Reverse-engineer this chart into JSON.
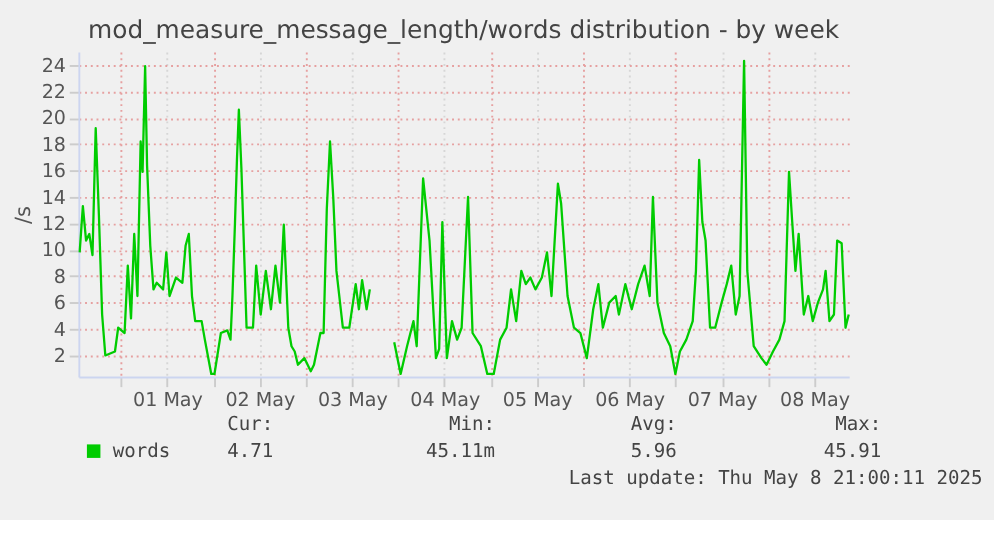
{
  "chart_data": {
    "type": "line",
    "title": "mod_measure_message_length/words distribution - by week",
    "ylabel": "/s",
    "x": [
      "2025-04-30T13:20",
      "2025-04-30T14:10",
      "2025-04-30T15:00",
      "2025-04-30T15:50",
      "2025-04-30T16:40",
      "2025-04-30T17:30",
      "2025-04-30T18:20",
      "2025-04-30T19:10",
      "2025-04-30T20:00",
      "2025-04-30T22:30",
      "2025-04-30T23:20",
      "2025-05-01T01:00",
      "2025-05-01T01:50",
      "2025-05-01T02:40",
      "2025-05-01T03:30",
      "2025-05-01T04:20",
      "2025-05-01T05:10",
      "2025-05-01T05:40",
      "2025-05-01T06:20",
      "2025-05-01T06:50",
      "2025-05-01T07:40",
      "2025-05-01T08:30",
      "2025-05-01T09:20",
      "2025-05-01T11:00",
      "2025-05-01T11:50",
      "2025-05-01T12:40",
      "2025-05-01T14:20",
      "2025-05-01T16:00",
      "2025-05-01T16:50",
      "2025-05-01T17:40",
      "2025-05-01T18:30",
      "2025-05-01T19:20",
      "2025-05-01T21:00",
      "2025-05-01T21:50",
      "2025-05-01T23:30",
      "2025-05-02T00:20",
      "2025-05-02T02:00",
      "2025-05-02T03:40",
      "2025-05-02T04:30",
      "2025-05-02T05:00",
      "2025-05-02T05:40",
      "2025-05-02T06:10",
      "2025-05-02T06:40",
      "2025-05-02T07:20",
      "2025-05-02T08:40",
      "2025-05-02T10:20",
      "2025-05-02T11:10",
      "2025-05-02T12:20",
      "2025-05-02T13:40",
      "2025-05-02T15:00",
      "2025-05-02T16:10",
      "2025-05-02T17:20",
      "2025-05-02T18:20",
      "2025-05-02T19:30",
      "2025-05-02T20:20",
      "2025-05-02T21:10",
      "2025-05-02T22:00",
      "2025-05-02T23:40",
      "2025-05-03T01:20",
      "2025-05-03T02:10",
      "2025-05-03T03:50",
      "2025-05-03T04:40",
      "2025-05-03T05:30",
      "2025-05-03T06:20",
      "2025-05-03T07:10",
      "2025-05-03T08:00",
      "2025-05-03T09:40",
      "2025-05-03T11:20",
      "2025-05-03T13:00",
      "2025-05-03T13:50",
      "2025-05-03T14:40",
      "2025-05-03T15:50",
      "2025-05-03T16:40",
      "2025-05-03T20:00",
      "2025-05-03T23:00",
      "2025-05-04T00:40",
      "2025-05-04T02:20",
      "2025-05-04T04:00",
      "2025-05-04T04:50",
      "2025-05-04T06:30",
      "2025-05-04T08:10",
      "2025-05-04T09:50",
      "2025-05-04T10:40",
      "2025-05-04T11:30",
      "2025-05-04T12:40",
      "2025-05-04T14:00",
      "2025-05-04T15:20",
      "2025-05-04T16:30",
      "2025-05-04T18:10",
      "2025-05-04T19:20",
      "2025-05-04T21:30",
      "2025-05-04T23:10",
      "2025-05-05T00:50",
      "2025-05-05T02:30",
      "2025-05-05T04:10",
      "2025-05-05T05:20",
      "2025-05-05T06:40",
      "2025-05-05T08:00",
      "2025-05-05T09:10",
      "2025-05-05T10:20",
      "2025-05-05T11:40",
      "2025-05-05T13:20",
      "2025-05-05T14:40",
      "2025-05-05T15:50",
      "2025-05-05T17:30",
      "2025-05-05T18:20",
      "2025-05-05T20:00",
      "2025-05-05T21:40",
      "2025-05-05T23:20",
      "2025-05-06T01:00",
      "2025-05-06T02:40",
      "2025-05-06T04:00",
      "2025-05-06T05:10",
      "2025-05-06T06:50",
      "2025-05-06T08:30",
      "2025-05-06T09:20",
      "2025-05-06T11:00",
      "2025-05-06T12:40",
      "2025-05-06T14:20",
      "2025-05-06T16:00",
      "2025-05-06T17:20",
      "2025-05-06T18:10",
      "2025-05-06T19:20",
      "2025-05-06T21:00",
      "2025-05-06T22:40",
      "2025-05-07T00:00",
      "2025-05-07T01:10",
      "2025-05-07T02:50",
      "2025-05-07T04:30",
      "2025-05-07T05:20",
      "2025-05-07T06:10",
      "2025-05-07T07:00",
      "2025-05-07T07:50",
      "2025-05-07T09:00",
      "2025-05-07T10:20",
      "2025-05-07T12:00",
      "2025-05-07T13:20",
      "2025-05-07T14:30",
      "2025-05-07T15:40",
      "2025-05-07T16:40",
      "2025-05-07T17:50",
      "2025-05-07T18:40",
      "2025-05-07T20:20",
      "2025-05-07T22:20",
      "2025-05-07T23:40",
      "2025-05-08T01:20",
      "2025-05-08T03:00",
      "2025-05-08T04:20",
      "2025-05-08T05:30",
      "2025-05-08T06:20",
      "2025-05-08T07:10",
      "2025-05-08T08:00",
      "2025-05-08T09:20",
      "2025-05-08T10:30",
      "2025-05-08T11:40",
      "2025-05-08T13:00",
      "2025-05-08T14:20",
      "2025-05-08T15:00",
      "2025-05-08T16:00",
      "2025-05-08T17:10",
      "2025-05-08T18:00",
      "2025-05-08T19:10",
      "2025-05-08T20:10",
      "2025-05-08T21:00"
    ],
    "series": [
      {
        "name": "words",
        "color": "#00cc00",
        "values": [
          9.8,
          13.3,
          10.7,
          11.2,
          9.6,
          19.2,
          12.6,
          5.1,
          2.0,
          2.3,
          4.1,
          3.7,
          8.8,
          4.8,
          11.2,
          6.5,
          18.2,
          15.9,
          23.9,
          16.4,
          10.3,
          7.0,
          7.5,
          7.0,
          9.8,
          6.5,
          7.9,
          7.5,
          10.3,
          11.2,
          6.5,
          4.6,
          4.6,
          3.2,
          0.6,
          0.6,
          3.7,
          3.9,
          3.2,
          6.5,
          12.1,
          16.8,
          20.6,
          16.1,
          4.1,
          4.1,
          8.8,
          5.1,
          8.4,
          5.5,
          8.8,
          6.0,
          11.9,
          4.1,
          2.7,
          2.3,
          1.3,
          1.8,
          0.8,
          1.3,
          3.7,
          3.7,
          13.1,
          18.2,
          14.0,
          8.4,
          4.1,
          4.1,
          7.4,
          5.5,
          7.7,
          5.5,
          7.0,
          null,
          3.0,
          0.6,
          2.7,
          4.6,
          2.7,
          15.4,
          10.7,
          1.8,
          2.5,
          12.1,
          1.8,
          4.6,
          3.2,
          4.1,
          14.0,
          3.7,
          2.7,
          0.6,
          0.6,
          3.2,
          4.1,
          7.0,
          4.6,
          8.4,
          7.4,
          7.9,
          7.0,
          7.9,
          9.8,
          6.5,
          15.0,
          13.5,
          6.5,
          4.1,
          3.7,
          1.8,
          5.5,
          7.4,
          4.1,
          6.0,
          6.5,
          5.1,
          7.4,
          5.5,
          7.4,
          8.8,
          6.5,
          14.0,
          6.0,
          3.7,
          2.7,
          0.6,
          2.3,
          3.2,
          4.6,
          8.4,
          16.8,
          12.1,
          10.7,
          4.1,
          4.1,
          6.0,
          7.4,
          8.8,
          5.1,
          6.5,
          24.3,
          8.4,
          2.7,
          1.8,
          1.3,
          2.3,
          3.2,
          4.6,
          15.9,
          12.1,
          8.4,
          11.2,
          5.1,
          6.5,
          4.6,
          6.0,
          7.0,
          8.4,
          4.6,
          5.1,
          10.7,
          10.5,
          4.1,
          5.1
        ]
      }
    ],
    "xlim": [
      "2025-04-30T13:00",
      "2025-05-08T21:00"
    ],
    "xticks": [
      {
        "value": "2025-05-01T00:00",
        "label": null
      },
      {
        "value": "2025-05-01T12:00",
        "label": "01 May"
      },
      {
        "value": "2025-05-02T00:00",
        "label": null
      },
      {
        "value": "2025-05-02T12:00",
        "label": "02 May"
      },
      {
        "value": "2025-05-03T00:00",
        "label": null
      },
      {
        "value": "2025-05-03T12:00",
        "label": "03 May"
      },
      {
        "value": "2025-05-04T00:00",
        "label": null
      },
      {
        "value": "2025-05-04T12:00",
        "label": "04 May"
      },
      {
        "value": "2025-05-05T00:00",
        "label": null
      },
      {
        "value": "2025-05-05T12:00",
        "label": "05 May"
      },
      {
        "value": "2025-05-06T00:00",
        "label": null
      },
      {
        "value": "2025-05-06T12:00",
        "label": "06 May"
      },
      {
        "value": "2025-05-07T00:00",
        "label": null
      },
      {
        "value": "2025-05-07T12:00",
        "label": "07 May"
      },
      {
        "value": "2025-05-08T00:00",
        "label": null
      },
      {
        "value": "2025-05-08T12:00",
        "label": "08 May"
      }
    ],
    "ylim": [
      0.4,
      25
    ],
    "yticks": [
      2,
      4,
      6,
      8,
      10,
      12,
      14,
      16,
      18,
      20,
      22,
      24
    ],
    "grid": true,
    "legend": "bottom",
    "marker": "none",
    "line_style": "solid",
    "annotations": [
      "Cur:",
      "4.71",
      "Min:",
      "45.11m",
      "Avg:",
      "5.96",
      "Max:",
      "45.91",
      "Last update: Thu May  8 21:00:11 2025"
    ]
  }
}
